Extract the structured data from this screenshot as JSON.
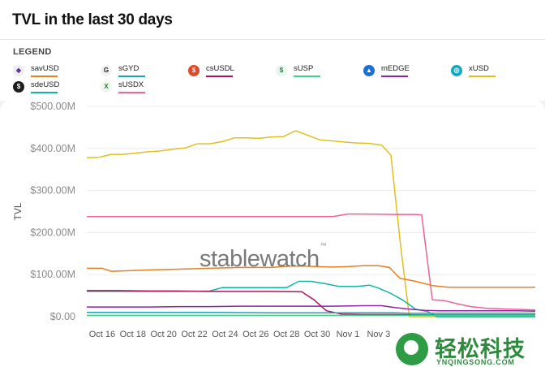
{
  "page": {
    "title": "TVL in the last 30 days"
  },
  "legend": {
    "heading": "LEGEND",
    "items": [
      {
        "label": "savUSD",
        "color": "#e67e22",
        "icon": "savusd-icon",
        "glyph": "◆",
        "icon_bg": "#eeeeee",
        "icon_fg": "#5b3a8c"
      },
      {
        "label": "sGYD",
        "color": "#1aa3b8",
        "icon": "sgyd-icon",
        "glyph": "G",
        "icon_bg": "#f2f2f2",
        "icon_fg": "#222222"
      },
      {
        "label": "csUSDL",
        "color": "#b3125a",
        "icon": "csusdl-icon",
        "glyph": "$",
        "icon_bg": "#e04a2a",
        "icon_fg": "#ffffff"
      },
      {
        "label": "sUSP",
        "color": "#3ecf8e",
        "icon": "susp-icon",
        "glyph": "$",
        "icon_bg": "#e8f6ee",
        "icon_fg": "#2f7a4a"
      },
      {
        "label": "mEDGE",
        "color": "#8e24aa",
        "icon": "medge-icon",
        "glyph": "▲",
        "icon_bg": "#1d6fd8",
        "icon_fg": "#ffffff"
      },
      {
        "label": "xUSD",
        "color": "#e0c020",
        "icon": "xusd-icon",
        "glyph": "◎",
        "icon_bg": "#17a9c4",
        "icon_fg": "#ffffff"
      },
      {
        "label": "sdeUSD",
        "color": "#0fb5a2",
        "icon": "sdeusd-icon",
        "glyph": "$",
        "icon_bg": "#1e1e1e",
        "icon_fg": "#ffffff"
      },
      {
        "label": "sUSDX",
        "color": "#f06292",
        "icon": "susdx-icon",
        "glyph": "X",
        "icon_bg": "#eef6ee",
        "icon_fg": "#2e7d32"
      }
    ]
  },
  "chart_data": {
    "type": "line",
    "title": "TVL in the last 30 days",
    "ylabel": "TVL",
    "xlabel": "",
    "ylim": [
      0,
      500
    ],
    "yticks": [
      0,
      100,
      200,
      300,
      400,
      500
    ],
    "ytick_labels": [
      "$0.00",
      "$100.00M",
      "$200.00M",
      "$300.00M",
      "$400.00M",
      "$500.00M"
    ],
    "xticks": [
      15,
      17,
      19,
      21,
      23,
      25,
      27,
      29,
      31,
      33
    ],
    "xtick_labels": [
      "Oct 16",
      "Oct 18",
      "Oct 20",
      "Oct 22",
      "Oct 24",
      "Oct 26",
      "Oct 28",
      "Oct 30",
      "Nov 1",
      "Nov 3"
    ],
    "xlim": [
      14,
      43.2
    ],
    "x_unit": "days since Oct 1 (Oct 16 = 15)",
    "series": [
      {
        "name": "xUSD",
        "color": "#e0c020",
        "x": [
          14,
          14.8,
          15.6,
          16.4,
          17.2,
          18,
          18.8,
          19.6,
          20.4,
          21.2,
          22,
          22.8,
          23.6,
          24.4,
          25.2,
          26,
          26.8,
          27.6,
          28.4,
          29.2,
          30,
          30.8,
          31.6,
          32.4,
          33.2,
          33.8,
          34.4,
          35,
          43.2
        ],
        "y": [
          378,
          379,
          386,
          386,
          389,
          392,
          394,
          398,
          401,
          411,
          411,
          416,
          425,
          425,
          424,
          427,
          428,
          442,
          431,
          420,
          418,
          415,
          413,
          412,
          408,
          384,
          180,
          0,
          0
        ]
      },
      {
        "name": "sUSDX",
        "color": "#f06292",
        "x": [
          14,
          16,
          18,
          20,
          22,
          24,
          26,
          28,
          30,
          31,
          32,
          34,
          35.4,
          35.8,
          36.5,
          37.3,
          38.2,
          39,
          40,
          41.5,
          43.2
        ],
        "y": [
          238,
          238,
          238,
          238,
          238,
          238,
          238,
          238,
          238,
          244,
          244,
          243,
          243,
          242,
          40,
          38,
          30,
          24,
          20,
          18,
          16
        ]
      },
      {
        "name": "savUSD",
        "color": "#e67e22",
        "x": [
          14,
          15,
          15.6,
          16.6,
          18,
          20,
          22,
          24,
          26,
          27.2,
          28.2,
          29,
          30,
          31,
          32,
          33,
          33.7,
          34.4,
          35.3,
          36.5,
          37.5,
          39,
          41,
          43.2
        ],
        "y": [
          115,
          115,
          108,
          109,
          111,
          113,
          115,
          117,
          117,
          120,
          120,
          119,
          118,
          119,
          121,
          121,
          117,
          91,
          85,
          74,
          70,
          70,
          70,
          70
        ]
      },
      {
        "name": "sdeUSD",
        "color": "#0fb5a2",
        "x": [
          14,
          16,
          18,
          20,
          22,
          22.8,
          23.8,
          25,
          26,
          27,
          27.8,
          28.6,
          29.6,
          30.4,
          31.6,
          32.4,
          33,
          33.8,
          34.6,
          35.4,
          36.2,
          36.8,
          43.2
        ],
        "y": [
          60,
          60,
          60,
          60,
          61,
          69,
          69,
          69,
          69,
          69,
          84,
          84,
          78,
          72,
          72,
          75,
          68,
          55,
          39,
          18,
          12,
          0,
          0
        ]
      },
      {
        "name": "csUSDL",
        "color": "#b3125a",
        "x": [
          14,
          16,
          18,
          20,
          22,
          24,
          26,
          28,
          28.8,
          29.6,
          30.6,
          32,
          34,
          36,
          38,
          40,
          42,
          43.2
        ],
        "y": [
          62,
          62,
          61,
          61,
          60,
          60,
          60,
          59,
          40,
          14,
          6,
          5,
          5,
          4,
          4,
          4,
          4,
          4
        ]
      },
      {
        "name": "mEDGE",
        "color": "#8e24aa",
        "x": [
          14,
          16,
          18,
          20,
          22,
          24,
          26,
          28,
          30,
          32,
          33.2,
          34,
          35,
          36,
          37,
          38,
          39,
          40,
          41,
          42,
          43.2
        ],
        "y": [
          23,
          23,
          23,
          24,
          24,
          25,
          25,
          25,
          25,
          26,
          26,
          22,
          18,
          15,
          14,
          14,
          14,
          14,
          14,
          14,
          13
        ]
      },
      {
        "name": "sGYD",
        "color": "#1aa3b8",
        "x": [
          14,
          18,
          22,
          26,
          30,
          34,
          35,
          36,
          38,
          40,
          43.2
        ],
        "y": [
          10,
          10,
          10,
          9,
          9,
          9,
          8,
          8,
          8,
          8,
          8
        ]
      },
      {
        "name": "sUSP",
        "color": "#3ecf8e",
        "x": [
          14,
          18,
          22,
          26,
          30,
          34,
          38,
          43.2
        ],
        "y": [
          3,
          3,
          3,
          3,
          3,
          3,
          3,
          3
        ]
      }
    ]
  },
  "watermark": {
    "text": "stablewatch",
    "mark": "™"
  },
  "badge": {
    "name": "轻松科技",
    "site": "YNQINGSONG.COM"
  }
}
